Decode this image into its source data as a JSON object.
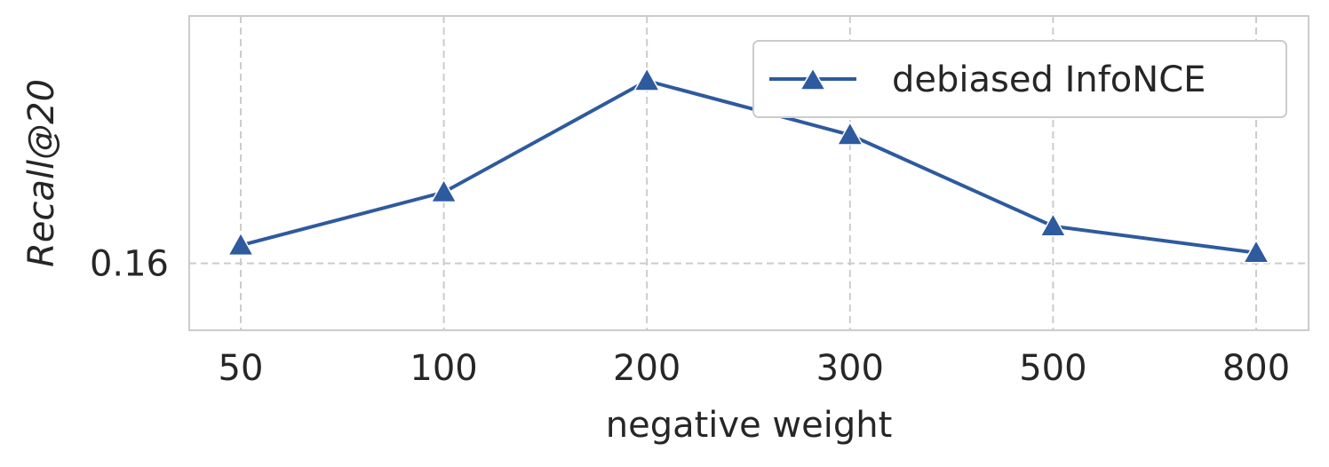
{
  "chart_data": {
    "type": "line",
    "x": [
      "50",
      "100",
      "200",
      "300",
      "500",
      "800"
    ],
    "series": [
      {
        "name": "debiased InfoNCE",
        "values": [
          0.1617,
          0.1667,
          0.1772,
          0.1721,
          0.1635,
          0.161
        ],
        "color": "#2e5a9e",
        "marker": "triangle"
      }
    ],
    "xlabel": "negative weight",
    "ylabel": "Recall@20",
    "yticks": [
      0.16
    ],
    "ytick_labels": [
      "0.16"
    ],
    "ylim": [
      0.1537,
      0.1833
    ],
    "grid": true,
    "legend_position": "upper-right",
    "colors": {
      "line": "#2e5a9e",
      "grid": "#cccccc",
      "frame": "#cccccc",
      "text": "#262626"
    }
  }
}
